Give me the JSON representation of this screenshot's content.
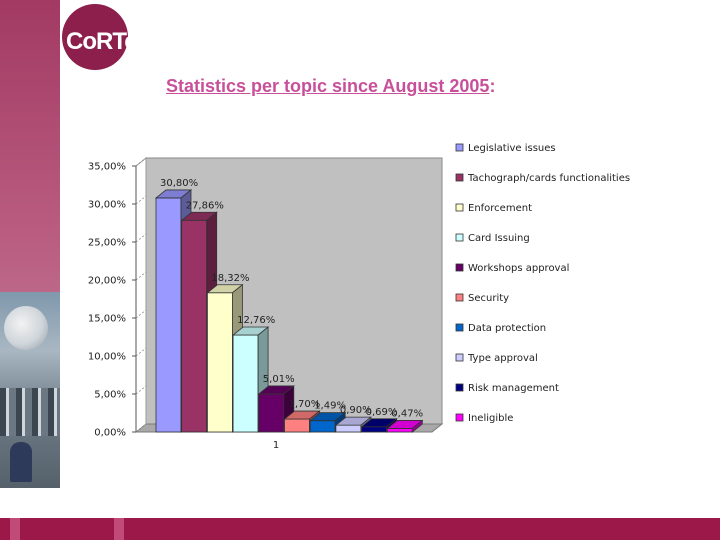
{
  "header": {
    "logo_text": "CoRTe",
    "title_main": "Statistics per topic since August 2005",
    "title_suffix": ":"
  },
  "colors": {
    "brand": "#9c1849",
    "title": "#c8509a"
  },
  "chart_data": {
    "type": "bar",
    "categories": [
      "1"
    ],
    "ylim": [
      0,
      35
    ],
    "yticks": [
      "0,00%",
      "5,00%",
      "10,00%",
      "15,00%",
      "20,00%",
      "25,00%",
      "30,00%",
      "35,00%"
    ],
    "grid": false,
    "legend_position": "right",
    "series": [
      {
        "name": "Legislative issues",
        "value": 30.8,
        "label": "30,80%",
        "color": "#9999ff"
      },
      {
        "name": "Tachograph/cards functionalities",
        "value": 27.86,
        "label": "27,86%",
        "color": "#993366"
      },
      {
        "name": "Enforcement",
        "value": 18.32,
        "label": "18,32%",
        "color": "#ffffcc"
      },
      {
        "name": "Card Issuing",
        "value": 12.76,
        "label": "12,76%",
        "color": "#ccffff"
      },
      {
        "name": "Workshops approval",
        "value": 5.01,
        "label": "5,01%",
        "color": "#660066"
      },
      {
        "name": "Security",
        "value": 1.7,
        "label": "1,70%",
        "color": "#ff8080"
      },
      {
        "name": "Data protection",
        "value": 1.49,
        "label": "1,49%",
        "color": "#0066cc"
      },
      {
        "name": "Type approval",
        "value": 0.9,
        "label": "0,90%",
        "color": "#ccccff"
      },
      {
        "name": "Risk management",
        "value": 0.69,
        "label": "0,69%",
        "color": "#000080"
      },
      {
        "name": "Ineligible",
        "value": 0.47,
        "label": "0,47%",
        "color": "#ff00ff"
      }
    ]
  }
}
